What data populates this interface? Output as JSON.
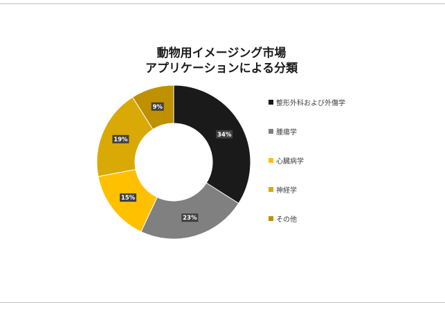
{
  "chart_data": {
    "type": "pie",
    "title_lines": [
      "動物用イメージング市場",
      "アプリケーションによる分類"
    ],
    "categories": [
      "整形外科および外傷学",
      "腫瘍学",
      "心臓病学",
      "神経学",
      "その他"
    ],
    "values": [
      34,
      23,
      15,
      19,
      9
    ],
    "data_labels": [
      "34%",
      "23%",
      "15%",
      "19%",
      "9%"
    ],
    "colors": [
      "#1a1a1a",
      "#808080",
      "#ffc000",
      "#d9a906",
      "#bf9000"
    ],
    "legend_position": "right",
    "donut": true
  }
}
